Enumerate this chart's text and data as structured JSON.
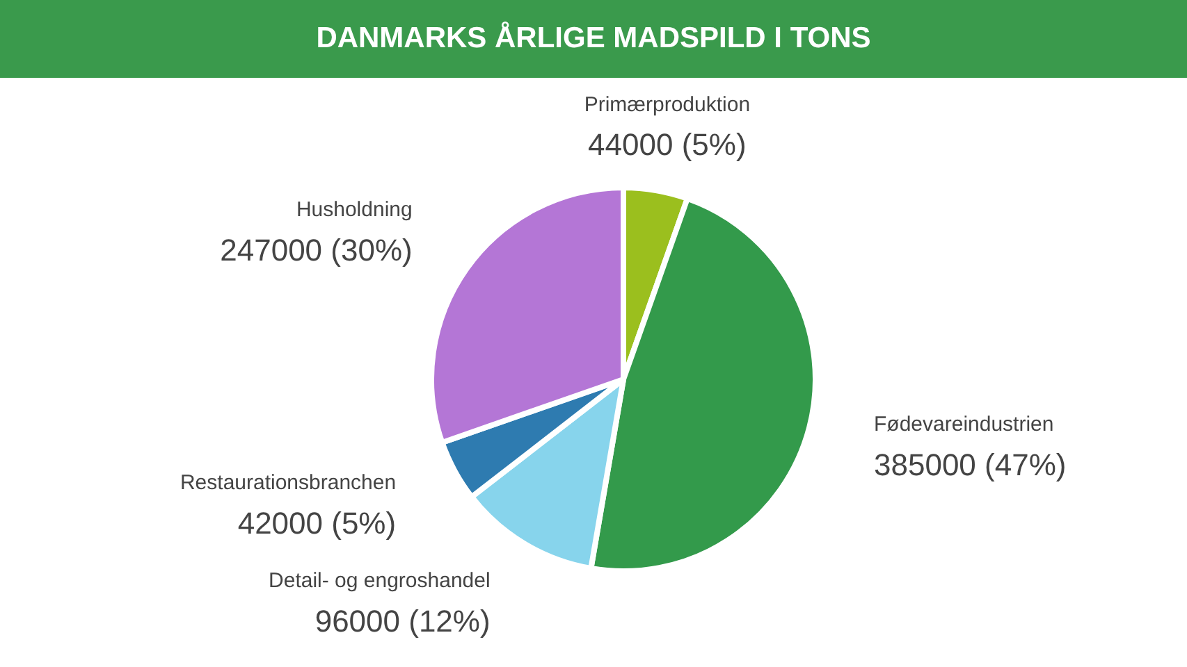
{
  "chart_data": {
    "type": "pie",
    "title": "DANMARKS ÅRLIGE MADSPILD I TONS",
    "categories": [
      "Primærproduktion",
      "Fødevareindustrien",
      "Detail- og engroshandel",
      "Restaurationsbranchen",
      "Husholdning"
    ],
    "values": [
      44000,
      385000,
      96000,
      42000,
      247000
    ],
    "colors": [
      "#9bbf1e",
      "#339a4b",
      "#87d4ec",
      "#2e7bb0",
      "#b476d6"
    ],
    "value_labels": [
      "44000 (5%)",
      "385000 (47%)",
      "96000 (12%)",
      "42000 (5%)",
      "247000 (30%)"
    ],
    "legend": false
  }
}
